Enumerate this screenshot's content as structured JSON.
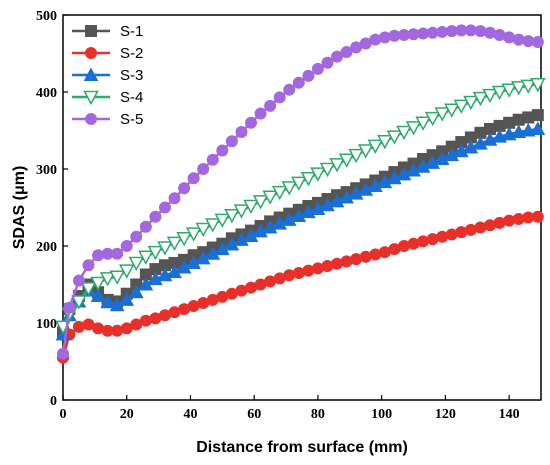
{
  "chart_data": {
    "type": "line",
    "xlabel": "Distance from surface (mm)",
    "ylabel": "SDAS (μm)",
    "xlim": [
      0,
      150
    ],
    "ylim": [
      0,
      500
    ],
    "xticks": [
      0,
      20,
      40,
      60,
      80,
      100,
      120,
      140
    ],
    "yticks": [
      0,
      100,
      200,
      300,
      400,
      500
    ],
    "grid": false,
    "legend_position": "top-left",
    "series": [
      {
        "name": "S-1",
        "color": "#555555",
        "marker": "square",
        "x": [
          0,
          2,
          5,
          8,
          11,
          14,
          17,
          20,
          23,
          26,
          29,
          32,
          35,
          38,
          41,
          44,
          47,
          50,
          53,
          56,
          59,
          62,
          65,
          68,
          71,
          74,
          77,
          80,
          83,
          86,
          89,
          92,
          95,
          98,
          101,
          104,
          107,
          110,
          113,
          116,
          119,
          122,
          125,
          128,
          131,
          134,
          137,
          140,
          143,
          146,
          149
        ],
        "y": [
          88,
          118,
          135,
          150,
          140,
          130,
          128,
          138,
          150,
          163,
          170,
          175,
          178,
          182,
          188,
          192,
          198,
          203,
          210,
          215,
          220,
          226,
          232,
          237,
          242,
          247,
          252,
          256,
          261,
          266,
          270,
          275,
          280,
          285,
          290,
          296,
          302,
          307,
          313,
          318,
          323,
          329,
          335,
          341,
          347,
          352,
          356,
          360,
          364,
          367,
          370
        ]
      },
      {
        "name": "S-2",
        "color": "#e8302a",
        "marker": "circle",
        "x": [
          0,
          2,
          5,
          8,
          11,
          14,
          17,
          20,
          23,
          26,
          29,
          32,
          35,
          38,
          41,
          44,
          47,
          50,
          53,
          56,
          59,
          62,
          65,
          68,
          71,
          74,
          77,
          80,
          83,
          86,
          89,
          92,
          95,
          98,
          101,
          104,
          107,
          110,
          113,
          116,
          119,
          122,
          125,
          128,
          131,
          134,
          137,
          140,
          143,
          146,
          149
        ],
        "y": [
          55,
          85,
          95,
          98,
          93,
          90,
          90,
          93,
          98,
          103,
          106,
          110,
          114,
          118,
          122,
          126,
          130,
          134,
          138,
          142,
          146,
          150,
          154,
          158,
          162,
          165,
          168,
          171,
          174,
          177,
          180,
          183,
          186,
          189,
          192,
          196,
          200,
          203,
          206,
          209,
          212,
          215,
          218,
          221,
          224,
          227,
          230,
          233,
          235,
          237,
          238
        ]
      },
      {
        "name": "S-3",
        "color": "#1a6fd6",
        "marker": "triangle-up",
        "x": [
          0,
          2,
          5,
          8,
          11,
          14,
          17,
          20,
          23,
          26,
          29,
          32,
          35,
          38,
          41,
          44,
          47,
          50,
          53,
          56,
          59,
          62,
          65,
          68,
          71,
          74,
          77,
          80,
          83,
          86,
          89,
          92,
          95,
          98,
          101,
          104,
          107,
          110,
          113,
          116,
          119,
          122,
          125,
          128,
          131,
          134,
          137,
          140,
          143,
          146,
          149
        ],
        "y": [
          85,
          110,
          128,
          142,
          135,
          127,
          123,
          130,
          140,
          150,
          157,
          162,
          166,
          172,
          178,
          184,
          190,
          196,
          202,
          208,
          213,
          219,
          224,
          229,
          234,
          239,
          244,
          248,
          253,
          258,
          263,
          268,
          273,
          278,
          283,
          288,
          293,
          298,
          303,
          308,
          313,
          318,
          323,
          328,
          333,
          338,
          342,
          345,
          348,
          350,
          352
        ]
      },
      {
        "name": "S-4",
        "color": "#2eaa6a",
        "marker": "triangle-down-open",
        "x": [
          0,
          2,
          5,
          8,
          11,
          14,
          17,
          20,
          23,
          26,
          29,
          32,
          35,
          38,
          41,
          44,
          47,
          50,
          53,
          56,
          59,
          62,
          65,
          68,
          71,
          74,
          77,
          80,
          83,
          86,
          89,
          92,
          95,
          98,
          101,
          104,
          107,
          110,
          113,
          116,
          119,
          122,
          125,
          128,
          131,
          134,
          137,
          140,
          143,
          146,
          149
        ],
        "y": [
          95,
          112,
          128,
          145,
          152,
          158,
          160,
          168,
          178,
          186,
          192,
          198,
          204,
          210,
          216,
          222,
          228,
          234,
          240,
          246,
          252,
          258,
          264,
          270,
          276,
          282,
          288,
          294,
          300,
          306,
          312,
          318,
          324,
          330,
          336,
          342,
          348,
          354,
          360,
          366,
          372,
          377,
          382,
          387,
          392,
          396,
          400,
          403,
          406,
          408,
          410
        ]
      },
      {
        "name": "S-5",
        "color": "#a368e0",
        "marker": "circle",
        "x": [
          0,
          2,
          5,
          8,
          11,
          14,
          17,
          20,
          23,
          26,
          29,
          32,
          35,
          38,
          41,
          44,
          47,
          50,
          53,
          56,
          59,
          62,
          65,
          68,
          71,
          74,
          77,
          80,
          83,
          86,
          89,
          92,
          95,
          98,
          101,
          104,
          107,
          110,
          113,
          116,
          119,
          122,
          125,
          128,
          131,
          134,
          137,
          140,
          143,
          146,
          149
        ],
        "y": [
          60,
          120,
          155,
          175,
          188,
          190,
          190,
          200,
          212,
          225,
          238,
          250,
          262,
          275,
          288,
          300,
          312,
          324,
          336,
          348,
          360,
          372,
          382,
          393,
          403,
          412,
          421,
          430,
          438,
          446,
          452,
          458,
          463,
          468,
          471,
          473,
          474,
          475,
          476,
          477,
          478,
          479,
          480,
          480,
          479,
          477,
          474,
          471,
          468,
          466,
          465
        ]
      }
    ]
  }
}
